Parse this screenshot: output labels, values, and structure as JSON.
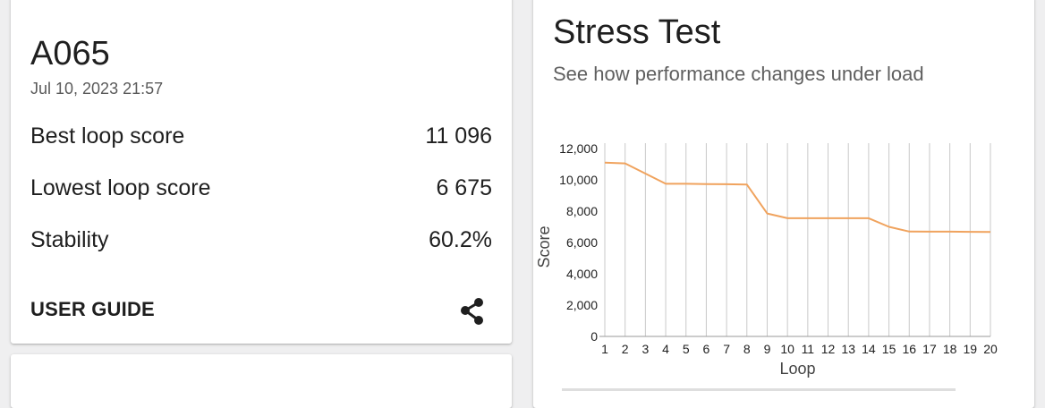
{
  "result": {
    "device_name": "A065",
    "timestamp": "Jul 10, 2023 21:57",
    "metrics": [
      {
        "label": "Best loop score",
        "value": "11 096"
      },
      {
        "label": "Lowest loop score",
        "value": "6 675"
      },
      {
        "label": "Stability",
        "value": "60.2%"
      }
    ],
    "user_guide_label": "USER GUIDE",
    "share_icon": "share-icon"
  },
  "stress": {
    "title": "Stress Test",
    "subtitle": "See how performance changes under load"
  },
  "colors": {
    "line": "#f0a35e",
    "grid": "#c9c9c9",
    "text": "#1f1f1f"
  },
  "chart_data": {
    "type": "line",
    "xlabel": "Loop",
    "ylabel": "Score",
    "ylim": [
      0,
      12000
    ],
    "x": [
      1,
      2,
      3,
      4,
      5,
      6,
      7,
      8,
      9,
      10,
      11,
      12,
      13,
      14,
      15,
      16,
      17,
      18,
      19,
      20
    ],
    "y_ticks": [
      "0",
      "2,000",
      "4,000",
      "6,000",
      "8,000",
      "10,000",
      "12,000"
    ],
    "y_tick_values": [
      0,
      2000,
      4000,
      6000,
      8000,
      10000,
      12000
    ],
    "series": [
      {
        "values": [
          11096,
          11050,
          10400,
          9750,
          9750,
          9730,
          9720,
          9700,
          7850,
          7550,
          7550,
          7550,
          7550,
          7550,
          7000,
          6700,
          6690,
          6690,
          6680,
          6675
        ]
      }
    ],
    "grid": "vertical"
  }
}
